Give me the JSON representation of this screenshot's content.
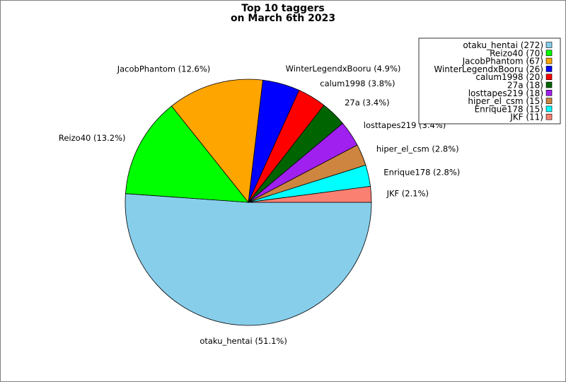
{
  "chart_data": {
    "type": "pie",
    "title_lines": [
      "Top 10 taggers",
      "on March 6th 2023"
    ],
    "slices": [
      {
        "name": "otaku_hentai",
        "value": 272,
        "percent_label": "otaku_hentai (51.1%)",
        "legend_label": "otaku_hentai (272)",
        "color": "#87ceeb"
      },
      {
        "name": "Reizo40",
        "value": 70,
        "percent_label": "Reizo40 (13.2%)",
        "legend_label": "Reizo40 (70)",
        "color": "#00ff00"
      },
      {
        "name": "JacobPhantom",
        "value": 67,
        "percent_label": "JacobPhantom (12.6%)",
        "legend_label": "JacobPhantom (67)",
        "color": "#ffa500"
      },
      {
        "name": "WinterLegendxBooru",
        "value": 26,
        "percent_label": "WinterLegendxBooru (4.9%)",
        "legend_label": "WinterLegendxBooru (26)",
        "color": "#0000ff"
      },
      {
        "name": "calum1998",
        "value": 20,
        "percent_label": "calum1998 (3.8%)",
        "legend_label": "calum1998 (20)",
        "color": "#ff0000"
      },
      {
        "name": "27a",
        "value": 18,
        "percent_label": "27a (3.4%)",
        "legend_label": "27a (18)",
        "color": "#006400"
      },
      {
        "name": "losttapes219",
        "value": 18,
        "percent_label": "losttapes219 (3.4%)",
        "legend_label": "losttapes219 (18)",
        "color": "#a020f0"
      },
      {
        "name": "hiper_el_csm",
        "value": 15,
        "percent_label": "hiper_el_csm (2.8%)",
        "legend_label": "hiper_el_csm (15)",
        "color": "#cd853f"
      },
      {
        "name": "Enrique178",
        "value": 15,
        "percent_label": "Enrique178 (2.8%)",
        "legend_label": "Enrique178 (15)",
        "color": "#00ffff"
      },
      {
        "name": "JKF",
        "value": 11,
        "percent_label": "JKF (2.1%)",
        "legend_label": "JKF (11)",
        "color": "#fa8072"
      }
    ],
    "start_direction": "east",
    "direction": "clockwise",
    "legend_position": "top-right"
  }
}
